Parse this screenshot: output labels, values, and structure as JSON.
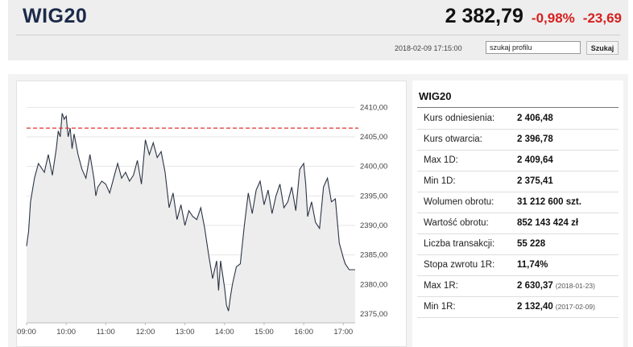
{
  "header": {
    "ticker": "WIG20",
    "price": "2 382,79",
    "change_pct": "-0,98%",
    "change_abs": "-23,69",
    "timestamp": "2018-02-09 17:15:00",
    "search_value": "szukaj profilu",
    "search_button": "Szukaj"
  },
  "colors": {
    "negative": "#d81e1e",
    "reference_line": "#e03030",
    "line": "#2b3445",
    "fill": "#ededed"
  },
  "info": {
    "title": "WIG20",
    "rows": [
      {
        "label": "Kurs odniesienia:",
        "value": "2 406,48",
        "date": ""
      },
      {
        "label": "Kurs otwarcia:",
        "value": "2 396,78",
        "date": ""
      },
      {
        "label": "Max 1D:",
        "value": "2 409,64",
        "date": ""
      },
      {
        "label": "Min 1D:",
        "value": "2 375,41",
        "date": ""
      },
      {
        "label": "Wolumen obrotu:",
        "value": "31 212 600 szt.",
        "date": ""
      },
      {
        "label": "Wartość obrotu:",
        "value": "852 143 424 zł",
        "date": ""
      },
      {
        "label": "Liczba transakcji:",
        "value": "55 228",
        "date": ""
      },
      {
        "label": "Stopa zwrotu 1R:",
        "value": "11,74%",
        "date": ""
      },
      {
        "label": "Max 1R:",
        "value": "2 630,37",
        "date": "(2018-01-23)"
      },
      {
        "label": "Min 1R:",
        "value": "2 132,40",
        "date": "(2017-02-09)"
      }
    ]
  },
  "chart_data": {
    "type": "area",
    "x_ticks": [
      "09:00",
      "10:00",
      "11:00",
      "12:00",
      "13:00",
      "14:00",
      "15:00",
      "16:00",
      "17:00"
    ],
    "y_ticks": [
      "2410,00",
      "2405,00",
      "2400,00",
      "2395,00",
      "2390,00",
      "2385,00",
      "2380,00",
      "2375,00"
    ],
    "y_tick_values": [
      2410,
      2405,
      2400,
      2395,
      2390,
      2385,
      2380,
      2375
    ],
    "ylim": [
      2373.5,
      2412.5
    ],
    "xlim": [
      9.0,
      17.3
    ],
    "reference_value": 2406.48,
    "x": [
      9.0,
      9.05,
      9.1,
      9.2,
      9.3,
      9.45,
      9.55,
      9.65,
      9.75,
      9.8,
      9.85,
      9.9,
      9.95,
      10.0,
      10.05,
      10.1,
      10.15,
      10.2,
      10.3,
      10.4,
      10.5,
      10.6,
      10.7,
      10.75,
      10.8,
      10.9,
      11.0,
      11.1,
      11.2,
      11.3,
      11.4,
      11.5,
      11.6,
      11.7,
      11.8,
      11.9,
      12.0,
      12.1,
      12.2,
      12.3,
      12.4,
      12.5,
      12.6,
      12.7,
      12.8,
      12.9,
      13.0,
      13.1,
      13.2,
      13.3,
      13.4,
      13.5,
      13.6,
      13.7,
      13.8,
      13.85,
      13.9,
      14.0,
      14.05,
      14.1,
      14.15,
      14.2,
      14.3,
      14.4,
      14.5,
      14.6,
      14.7,
      14.8,
      14.9,
      15.0,
      15.1,
      15.2,
      15.3,
      15.4,
      15.5,
      15.6,
      15.7,
      15.8,
      15.9,
      16.0,
      16.05,
      16.1,
      16.2,
      16.3,
      16.4,
      16.5,
      16.6,
      16.7,
      16.8,
      16.9,
      17.0,
      17.05,
      17.15,
      17.3
    ],
    "values": [
      2386.5,
      2389,
      2394,
      2398,
      2400.5,
      2399,
      2402,
      2398.5,
      2403,
      2406,
      2405,
      2409,
      2408,
      2408.5,
      2405,
      2406.5,
      2403,
      2405.5,
      2402,
      2399.5,
      2398,
      2402,
      2398,
      2395,
      2396.5,
      2397.5,
      2397,
      2395.5,
      2398,
      2400.5,
      2398,
      2399,
      2397.5,
      2398.5,
      2401,
      2397,
      2404.5,
      2402,
      2404,
      2401.5,
      2402.5,
      2399,
      2393,
      2395.5,
      2391,
      2393.5,
      2390,
      2392.5,
      2391.5,
      2391,
      2393,
      2389.5,
      2385,
      2381,
      2384,
      2379,
      2384,
      2379.5,
      2376.5,
      2375.5,
      2378,
      2380,
      2383,
      2383.5,
      2390,
      2395.5,
      2392,
      2396,
      2397.5,
      2393.5,
      2396,
      2392,
      2395,
      2397,
      2393,
      2394,
      2396.5,
      2392.5,
      2399.5,
      2400.5,
      2397,
      2391.5,
      2394,
      2390.5,
      2389.5,
      2396.5,
      2398,
      2394,
      2394.5,
      2387,
      2384.5,
      2383.5,
      2382.5,
      2382.5
    ]
  }
}
